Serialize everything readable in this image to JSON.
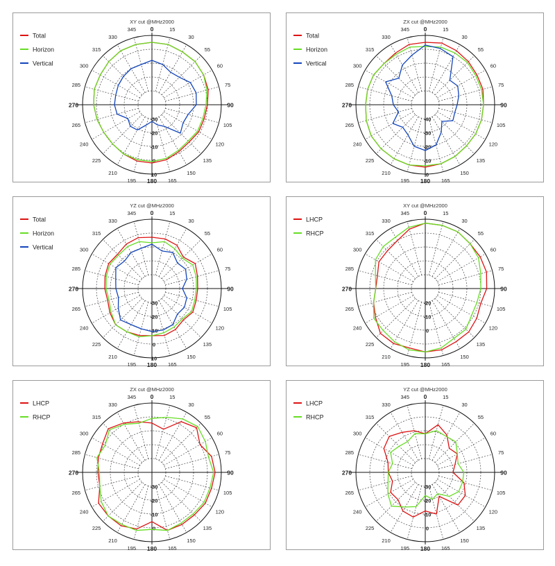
{
  "colors": {
    "Total": "#dd1111",
    "Horizon": "#66dd22",
    "Vertical": "#1144bb",
    "LHCP": "#dd1111",
    "RHCP": "#66dd22"
  },
  "chart_data": [
    {
      "type": "line",
      "polar": true,
      "title": "XY cut @MHz2000",
      "angle_labels": [
        "0",
        "15",
        "30",
        "55",
        "60",
        "75",
        "90",
        "105",
        "120",
        "135",
        "150",
        "165",
        "180",
        "195",
        "210",
        "225",
        "240",
        "265",
        "270",
        "285",
        "300",
        "315",
        "330",
        "345"
      ],
      "radial_labels": [
        "-30",
        "-20",
        "-10",
        "0",
        "10"
      ],
      "rlim": [
        -40,
        10
      ],
      "legend": "top-left",
      "series": [
        {
          "name": "Total",
          "values": [
            5,
            5,
            4,
            4,
            3,
            2,
            0,
            -1,
            -1,
            -2,
            -1,
            1,
            2,
            2,
            1,
            0,
            0,
            1,
            2,
            3,
            3,
            4,
            5,
            5
          ]
        },
        {
          "name": "Horizon",
          "values": [
            5,
            5,
            4,
            4,
            3,
            1,
            -1,
            -2,
            -2,
            -3,
            -2,
            0,
            1,
            1,
            1,
            0,
            0,
            1,
            2,
            3,
            3,
            4,
            5,
            5
          ]
        },
        {
          "name": "Vertical",
          "values": [
            -8,
            -10,
            -13,
            -12,
            -8,
            -7,
            -8,
            -13,
            -14,
            -11,
            -22,
            -25,
            -28,
            -25,
            -19,
            -18,
            -20,
            -14,
            -13,
            -13,
            -12,
            -11,
            -10,
            -10
          ]
        }
      ]
    },
    {
      "type": "line",
      "polar": true,
      "title": "ZX cut @MHz2000",
      "angle_labels": [
        "0",
        "15",
        "30",
        "55",
        "60",
        "75",
        "90",
        "105",
        "120",
        "135",
        "150",
        "165",
        "180",
        "195",
        "210",
        "225",
        "240",
        "265",
        "270",
        "285",
        "300",
        "315",
        "330",
        "345"
      ],
      "radial_labels": [
        "-40",
        "-30",
        "-20",
        "-10",
        "0"
      ],
      "rlim": [
        -45,
        5
      ],
      "legend": "top-left",
      "series": [
        {
          "name": "Total",
          "values": [
            0,
            1,
            0,
            -1,
            -2,
            -2,
            -3,
            -3,
            -3,
            -3,
            -2,
            -1,
            0,
            0,
            0,
            0,
            0,
            -1,
            -2,
            -2,
            -2,
            -3,
            -2,
            0
          ]
        },
        {
          "name": "Horizon",
          "values": [
            -3,
            -2,
            -2,
            -2,
            -3,
            -3,
            -3,
            -3,
            -3,
            -3,
            -2,
            -1,
            -1,
            0,
            0,
            0,
            0,
            -1,
            -2,
            -2,
            -2,
            -3,
            -3,
            -2
          ]
        },
        {
          "name": "Vertical",
          "values": [
            -2,
            -3,
            -5,
            -20,
            -18,
            -20,
            -22,
            -23,
            -22,
            -28,
            -22,
            -15,
            -12,
            -14,
            -20,
            -22,
            -18,
            -25,
            -22,
            -20,
            -12,
            -18,
            -12,
            -8
          ]
        }
      ]
    },
    {
      "type": "line",
      "polar": true,
      "title": "YZ cut @MHz2000",
      "angle_labels": [
        "0",
        "15",
        "30",
        "55",
        "60",
        "75",
        "90",
        "105",
        "120",
        "135",
        "150",
        "165",
        "180",
        "195",
        "210",
        "225",
        "240",
        "265",
        "270",
        "285",
        "300",
        "315",
        "330",
        "345"
      ],
      "radial_labels": [
        "-30",
        "-20",
        "-10",
        "0",
        "10"
      ],
      "rlim": [
        -40,
        10
      ],
      "legend": "top-left",
      "series": [
        {
          "name": "Total",
          "values": [
            -3,
            -3,
            -4,
            -8,
            -4,
            -6,
            -7,
            -7,
            -6,
            -8,
            -6,
            -5,
            -6,
            -5,
            -4,
            -3,
            -5,
            -7,
            -6,
            -5,
            -4,
            -5,
            -3,
            -2
          ]
        },
        {
          "name": "Horizon",
          "values": [
            -7,
            -5,
            -7,
            -9,
            -6,
            -7,
            -8,
            -8,
            -7,
            -9,
            -8,
            -7,
            -6,
            -4,
            -4,
            -3,
            -6,
            -8,
            -7,
            -6,
            -5,
            -6,
            -5,
            -5
          ]
        },
        {
          "name": "Vertical",
          "values": [
            -8,
            -12,
            -10,
            -14,
            -12,
            -14,
            -18,
            -14,
            -13,
            -14,
            -10,
            -9,
            -9,
            -10,
            -10,
            -8,
            -12,
            -15,
            -14,
            -13,
            -10,
            -12,
            -10,
            -10
          ]
        }
      ]
    },
    {
      "type": "line",
      "polar": true,
      "title": "XY cut @MHz2000",
      "angle_labels": [
        "0",
        "15",
        "30",
        "55",
        "60",
        "75",
        "90",
        "105",
        "120",
        "135",
        "150",
        "165",
        "180",
        "195",
        "210",
        "225",
        "240",
        "265",
        "270",
        "285",
        "300",
        "315",
        "330",
        "345"
      ],
      "radial_labels": [
        "-20",
        "-10",
        "0"
      ],
      "rlim": [
        -30,
        5
      ],
      "legend": "top-left",
      "series": [
        {
          "name": "LHCP",
          "values": [
            3,
            3,
            3,
            2,
            2,
            2,
            1,
            -1,
            0,
            1,
            1,
            2,
            2,
            1,
            2,
            2,
            -1,
            -3,
            -5,
            -5,
            -3,
            -3,
            -2,
            1
          ]
        },
        {
          "name": "RHCP",
          "values": [
            3,
            3,
            3,
            2,
            1,
            -1,
            -2,
            -3,
            -3,
            -1,
            -1,
            1,
            2,
            2,
            1,
            0,
            0,
            -3,
            -5,
            -4,
            -1,
            0,
            0,
            2
          ]
        }
      ]
    },
    {
      "type": "line",
      "polar": true,
      "title": "ZX cut @MHz2000",
      "angle_labels": [
        "0",
        "15",
        "30",
        "55",
        "60",
        "75",
        "90",
        "105",
        "120",
        "135",
        "150",
        "165",
        "180",
        "195",
        "210",
        "225",
        "240",
        "265",
        "270",
        "285",
        "300",
        "315",
        "330",
        "345"
      ],
      "radial_labels": [
        "-30",
        "-20",
        "-10",
        "0"
      ],
      "rlim": [
        -40,
        5
      ],
      "legend": "top-left",
      "series": [
        {
          "name": "LHCP",
          "values": [
            -8,
            -11,
            -2,
            1,
            -4,
            0,
            1,
            0,
            0,
            -1,
            -1,
            -1,
            -8,
            -2,
            0,
            0,
            0,
            -5,
            -5,
            -4,
            -3,
            0,
            -3,
            -6
          ]
        },
        {
          "name": "RHCP",
          "values": [
            -5,
            -3,
            0,
            2,
            0,
            -2,
            0,
            -1,
            -1,
            -2,
            -2,
            -1,
            -3,
            -1,
            -1,
            0,
            -2,
            -5,
            -6,
            -3,
            -5,
            -1,
            -4,
            -7
          ]
        }
      ]
    },
    {
      "type": "line",
      "polar": true,
      "title": "YZ cut @MHz2000",
      "angle_labels": [
        "0",
        "15",
        "30",
        "55",
        "60",
        "75",
        "90",
        "105",
        "120",
        "135",
        "150",
        "165",
        "180",
        "195",
        "210",
        "225",
        "240",
        "265",
        "270",
        "285",
        "300",
        "315",
        "330",
        "345"
      ],
      "radial_labels": [
        "-30",
        "-20",
        "-10",
        "0"
      ],
      "rlim": [
        -40,
        5
      ],
      "legend": "top-left",
      "series": [
        {
          "name": "LHCP",
          "values": [
            -15,
            -8,
            -12,
            -18,
            -16,
            -20,
            -22,
            -14,
            -10,
            -10,
            -22,
            -12,
            -15,
            -10,
            -11,
            -15,
            -14,
            -18,
            -16,
            -15,
            -9,
            -7,
            -10,
            -12
          ]
        },
        {
          "name": "RHCP",
          "values": [
            -15,
            -12,
            -13,
            -12,
            -16,
            -18,
            -15,
            -15,
            -15,
            -18,
            -24,
            -22,
            -25,
            -17,
            -14,
            -9,
            -12,
            -15,
            -16,
            -18,
            -14,
            -16,
            -17,
            -14
          ]
        }
      ]
    }
  ]
}
